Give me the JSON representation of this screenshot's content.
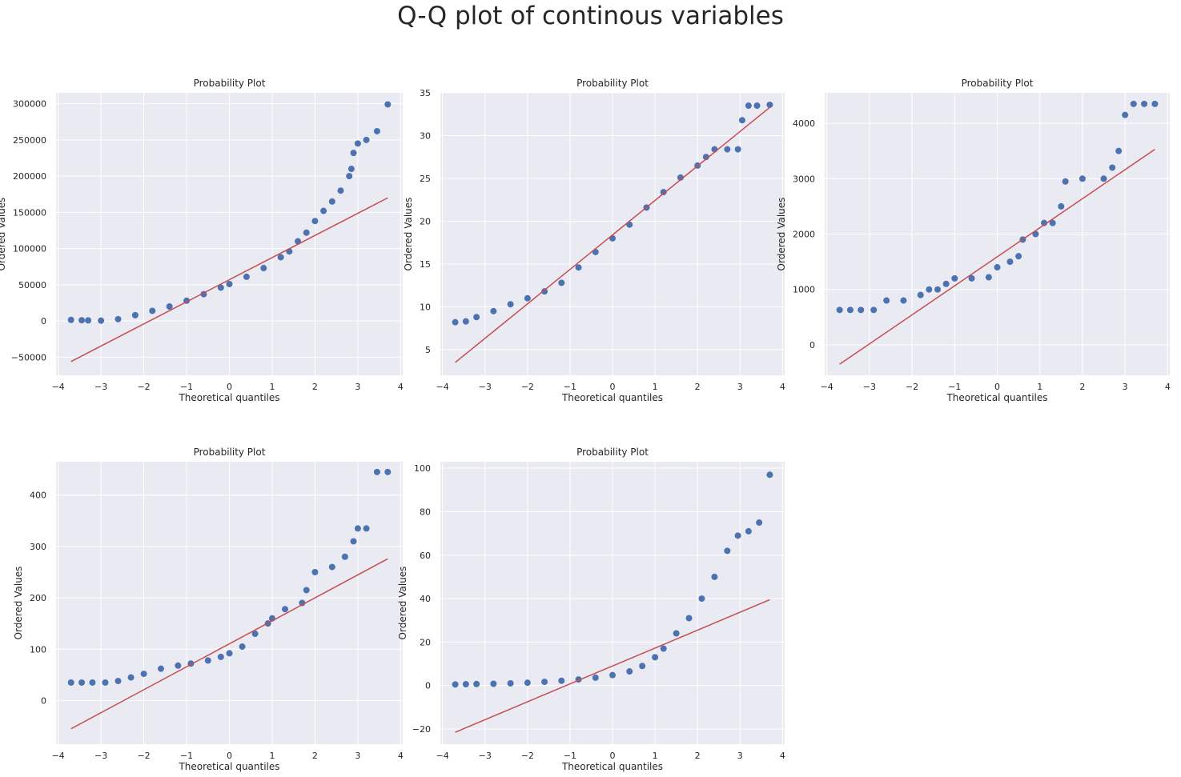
{
  "suptitle": "Q-Q plot of continous variables",
  "colors": {
    "background": "#eaeaf2",
    "grid": "#ffffff",
    "points": "#4c72b0",
    "fit_line": "#c44e52",
    "text": "#262626"
  },
  "chart_data": [
    {
      "type": "scatter",
      "title": "Probability Plot",
      "xlabel": "Theoretical quantiles",
      "ylabel": "Ordered Values",
      "xlim": [
        -4.05,
        4.05
      ],
      "ylim": [
        -75000,
        315000
      ],
      "xticks": [
        -4,
        -3,
        -2,
        -1,
        0,
        1,
        2,
        3,
        4
      ],
      "yticks": [
        -50000,
        0,
        50000,
        100000,
        150000,
        200000,
        250000,
        300000
      ],
      "grid": true,
      "fit_line": {
        "x": [
          -3.7,
          3.7
        ],
        "y": [
          -56000,
          170000
        ]
      },
      "points": [
        [
          -3.7,
          1500
        ],
        [
          -3.45,
          1000
        ],
        [
          -3.3,
          800
        ],
        [
          -3.0,
          500
        ],
        [
          -2.6,
          2500
        ],
        [
          -2.2,
          8000
        ],
        [
          -1.8,
          14000
        ],
        [
          -1.4,
          20000
        ],
        [
          -1.0,
          28000
        ],
        [
          -0.6,
          37000
        ],
        [
          -0.2,
          46000
        ],
        [
          0.0,
          51000
        ],
        [
          0.4,
          61000
        ],
        [
          0.8,
          73000
        ],
        [
          1.2,
          88000
        ],
        [
          1.4,
          96000
        ],
        [
          1.6,
          110000
        ],
        [
          1.8,
          122000
        ],
        [
          2.0,
          138000
        ],
        [
          2.2,
          152000
        ],
        [
          2.4,
          165000
        ],
        [
          2.6,
          180000
        ],
        [
          2.8,
          200000
        ],
        [
          2.85,
          210000
        ],
        [
          2.9,
          232000
        ],
        [
          3.0,
          245000
        ],
        [
          3.2,
          250000
        ],
        [
          3.45,
          262000
        ],
        [
          3.7,
          299000
        ]
      ]
    },
    {
      "type": "scatter",
      "title": "Probability Plot",
      "xlabel": "Theoretical quantiles",
      "ylabel": "Ordered Values",
      "xlim": [
        -4.05,
        4.05
      ],
      "ylim": [
        2.0,
        35.0
      ],
      "xticks": [
        -4,
        -3,
        -2,
        -1,
        0,
        1,
        2,
        3,
        4
      ],
      "yticks": [
        5,
        10,
        15,
        20,
        25,
        30,
        35
      ],
      "grid": true,
      "fit_line": {
        "x": [
          -3.7,
          3.7
        ],
        "y": [
          3.5,
          33.3
        ]
      },
      "points": [
        [
          -3.7,
          8.2
        ],
        [
          -3.45,
          8.3
        ],
        [
          -3.2,
          8.8
        ],
        [
          -2.8,
          9.5
        ],
        [
          -2.4,
          10.3
        ],
        [
          -2.0,
          11.0
        ],
        [
          -1.6,
          11.8
        ],
        [
          -1.2,
          12.8
        ],
        [
          -0.8,
          14.6
        ],
        [
          -0.4,
          16.4
        ],
        [
          0.0,
          18.0
        ],
        [
          0.4,
          19.6
        ],
        [
          0.8,
          21.6
        ],
        [
          1.2,
          23.4
        ],
        [
          1.6,
          25.1
        ],
        [
          2.0,
          26.5
        ],
        [
          2.2,
          27.5
        ],
        [
          2.4,
          28.4
        ],
        [
          2.7,
          28.4
        ],
        [
          2.95,
          28.4
        ],
        [
          3.05,
          31.8
        ],
        [
          3.2,
          33.5
        ],
        [
          3.4,
          33.5
        ],
        [
          3.7,
          33.6
        ]
      ]
    },
    {
      "type": "scatter",
      "title": "Probability Plot",
      "xlabel": "Theoretical quantiles",
      "ylabel": "Ordered Values",
      "xlim": [
        -4.05,
        4.05
      ],
      "ylim": [
        -550,
        4550
      ],
      "xticks": [
        -4,
        -3,
        -2,
        -1,
        0,
        1,
        2,
        3,
        4
      ],
      "yticks": [
        0,
        1000,
        2000,
        3000,
        4000
      ],
      "grid": true,
      "fit_line": {
        "x": [
          -3.7,
          3.7
        ],
        "y": [
          -350,
          3530
        ]
      },
      "points": [
        [
          -3.7,
          630
        ],
        [
          -3.45,
          630
        ],
        [
          -3.2,
          630
        ],
        [
          -2.9,
          630
        ],
        [
          -2.6,
          800
        ],
        [
          -2.2,
          800
        ],
        [
          -1.8,
          900
        ],
        [
          -1.6,
          1000
        ],
        [
          -1.4,
          1000
        ],
        [
          -1.2,
          1100
        ],
        [
          -1.0,
          1200
        ],
        [
          -0.6,
          1200
        ],
        [
          -0.2,
          1220
        ],
        [
          0.0,
          1400
        ],
        [
          0.3,
          1500
        ],
        [
          0.5,
          1600
        ],
        [
          0.6,
          1900
        ],
        [
          0.9,
          2000
        ],
        [
          1.1,
          2200
        ],
        [
          1.3,
          2200
        ],
        [
          1.5,
          2500
        ],
        [
          1.6,
          2950
        ],
        [
          2.0,
          3000
        ],
        [
          2.5,
          3000
        ],
        [
          2.7,
          3200
        ],
        [
          2.85,
          3500
        ],
        [
          3.0,
          4150
        ],
        [
          3.2,
          4350
        ],
        [
          3.45,
          4350
        ],
        [
          3.7,
          4350
        ]
      ]
    },
    {
      "type": "scatter",
      "title": "Probability Plot",
      "xlabel": "Theoretical quantiles",
      "ylabel": "Ordered Values",
      "xlim": [
        -4.05,
        4.05
      ],
      "ylim": [
        -85,
        465
      ],
      "xticks": [
        -4,
        -3,
        -2,
        -1,
        0,
        1,
        2,
        3,
        4
      ],
      "yticks": [
        0,
        100,
        200,
        300,
        400
      ],
      "grid": true,
      "fit_line": {
        "x": [
          -3.7,
          3.7
        ],
        "y": [
          -55,
          276
        ]
      },
      "points": [
        [
          -3.7,
          35
        ],
        [
          -3.45,
          35
        ],
        [
          -3.2,
          35
        ],
        [
          -2.9,
          35
        ],
        [
          -2.6,
          38
        ],
        [
          -2.3,
          45
        ],
        [
          -2.0,
          52
        ],
        [
          -1.6,
          62
        ],
        [
          -1.2,
          68
        ],
        [
          -0.9,
          72
        ],
        [
          -0.5,
          78
        ],
        [
          -0.2,
          85
        ],
        [
          0.0,
          92
        ],
        [
          0.3,
          105
        ],
        [
          0.6,
          130
        ],
        [
          0.9,
          150
        ],
        [
          1.0,
          160
        ],
        [
          1.3,
          178
        ],
        [
          1.7,
          190
        ],
        [
          1.8,
          215
        ],
        [
          2.0,
          250
        ],
        [
          2.4,
          260
        ],
        [
          2.7,
          280
        ],
        [
          2.9,
          310
        ],
        [
          3.0,
          335
        ],
        [
          3.2,
          335
        ],
        [
          3.45,
          445
        ],
        [
          3.7,
          445
        ]
      ]
    },
    {
      "type": "scatter",
      "title": "Probability Plot",
      "xlabel": "Theoretical quantiles",
      "ylabel": "Ordered Values",
      "xlim": [
        -4.05,
        4.05
      ],
      "ylim": [
        -27,
        103
      ],
      "xticks": [
        -4,
        -3,
        -2,
        -1,
        0,
        1,
        2,
        3,
        4
      ],
      "yticks": [
        -20,
        0,
        20,
        40,
        60,
        80,
        100
      ],
      "grid": true,
      "fit_line": {
        "x": [
          -3.7,
          3.7
        ],
        "y": [
          -21.5,
          39.5
        ]
      },
      "points": [
        [
          -3.7,
          0.5
        ],
        [
          -3.45,
          0.6
        ],
        [
          -3.2,
          0.7
        ],
        [
          -2.8,
          0.8
        ],
        [
          -2.4,
          1.0
        ],
        [
          -2.0,
          1.3
        ],
        [
          -1.6,
          1.7
        ],
        [
          -1.2,
          2.2
        ],
        [
          -0.8,
          2.8
        ],
        [
          -0.4,
          3.6
        ],
        [
          0.0,
          4.8
        ],
        [
          0.4,
          6.5
        ],
        [
          0.7,
          9.0
        ],
        [
          1.0,
          13.0
        ],
        [
          1.2,
          17.0
        ],
        [
          1.5,
          24.0
        ],
        [
          1.8,
          31.0
        ],
        [
          2.1,
          40.0
        ],
        [
          2.4,
          50.0
        ],
        [
          2.7,
          62.0
        ],
        [
          2.95,
          69.0
        ],
        [
          3.2,
          71.0
        ],
        [
          3.45,
          75.0
        ],
        [
          3.7,
          97.0
        ]
      ]
    }
  ]
}
